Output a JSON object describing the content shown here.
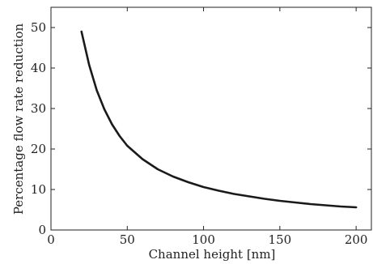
{
  "chart_data": {
    "type": "line",
    "title": "",
    "xlabel": "Channel height [nm]",
    "ylabel": "Percentage flow rate reduction",
    "xlim": [
      0,
      210
    ],
    "ylim": [
      0,
      55
    ],
    "xticks": [
      0,
      50,
      100,
      150,
      200
    ],
    "yticks": [
      0,
      10,
      20,
      30,
      40,
      50
    ],
    "grid": false,
    "legend": "none",
    "series": [
      {
        "color": "#1a1a1a",
        "x": [
          20,
          25,
          30,
          35,
          40,
          45,
          50,
          60,
          70,
          80,
          90,
          100,
          110,
          120,
          130,
          140,
          150,
          160,
          170,
          180,
          190,
          200
        ],
        "y": [
          49.0,
          40.8,
          34.5,
          29.8,
          26.1,
          23.2,
          20.8,
          17.5,
          15.0,
          13.2,
          11.8,
          10.6,
          9.7,
          8.9,
          8.3,
          7.7,
          7.2,
          6.8,
          6.4,
          6.1,
          5.8,
          5.6
        ]
      }
    ]
  }
}
